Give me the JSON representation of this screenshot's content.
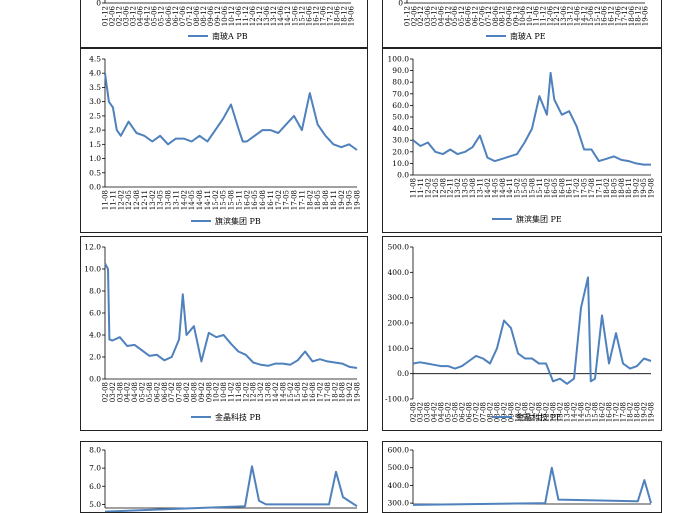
{
  "panels": [
    {
      "id": "p0",
      "legend": "南玻A PB",
      "xticks": [
        "01-12",
        "02-06",
        "02-12",
        "03-06",
        "03-12",
        "04-06",
        "04-12",
        "05-06",
        "05-12",
        "06-06",
        "06-12",
        "07-06",
        "07-12",
        "08-06",
        "08-12",
        "09-06",
        "09-12",
        "10-06",
        "10-12",
        "11-06",
        "11-12",
        "12-06",
        "12-12",
        "13-06",
        "13-12",
        "14-06",
        "14-12",
        "15-06",
        "15-12",
        "16-06",
        "16-12",
        "17-06",
        "17-12",
        "18-06",
        "18-12",
        "19-06"
      ],
      "yticks": [
        "0"
      ],
      "ylim": [
        0,
        1
      ],
      "series": []
    },
    {
      "id": "p1",
      "legend": "南玻A PE",
      "xticks": [
        "01-12",
        "02-06",
        "02-12",
        "03-06",
        "03-12",
        "04-06",
        "04-12",
        "05-06",
        "05-12",
        "06-06",
        "06-12",
        "07-06",
        "07-12",
        "08-06",
        "08-12",
        "09-06",
        "09-12",
        "10-06",
        "10-12",
        "11-06",
        "11-12",
        "12-06",
        "12-12",
        "13-06",
        "13-12",
        "14-06",
        "14-12",
        "15-06",
        "15-12",
        "16-06",
        "16-12",
        "17-06",
        "17-12",
        "18-06",
        "18-12",
        "19-06"
      ],
      "yticks": [
        "0"
      ],
      "ylim": [
        0,
        1
      ],
      "series": []
    },
    {
      "id": "p2",
      "legend": "旗滨集团 PB",
      "xticks": [
        "11-08",
        "11-11",
        "12-02",
        "12-05",
        "12-08",
        "12-11",
        "13-02",
        "13-05",
        "13-08",
        "13-11",
        "14-02",
        "14-05",
        "14-08",
        "14-11",
        "15-02",
        "15-05",
        "15-08",
        "15-11",
        "16-02",
        "16-05",
        "16-08",
        "16-11",
        "17-02",
        "17-05",
        "17-08",
        "17-11",
        "18-02",
        "18-05",
        "18-08",
        "18-11",
        "19-02",
        "19-05",
        "19-08"
      ],
      "yticks": [
        "0.0",
        "0.5",
        "1.0",
        "1.5",
        "2.0",
        "2.5",
        "3.0",
        "3.5",
        "4.0",
        "4.5"
      ],
      "ylim": [
        0,
        4.5
      ],
      "series": [
        [
          0,
          4.0
        ],
        [
          0.5,
          3.0
        ],
        [
          1,
          2.8
        ],
        [
          1.5,
          2.0
        ],
        [
          2,
          1.8
        ],
        [
          3,
          2.3
        ],
        [
          4,
          1.9
        ],
        [
          5,
          1.8
        ],
        [
          6,
          1.6
        ],
        [
          7,
          1.8
        ],
        [
          8,
          1.5
        ],
        [
          9,
          1.7
        ],
        [
          10,
          1.7
        ],
        [
          11,
          1.6
        ],
        [
          12,
          1.8
        ],
        [
          13,
          1.6
        ],
        [
          14,
          2.0
        ],
        [
          15,
          2.4
        ],
        [
          16,
          2.9
        ],
        [
          17,
          2.0
        ],
        [
          17.5,
          1.6
        ],
        [
          18,
          1.6
        ],
        [
          19,
          1.8
        ],
        [
          20,
          2.0
        ],
        [
          21,
          2.0
        ],
        [
          22,
          1.9
        ],
        [
          23,
          2.2
        ],
        [
          24,
          2.5
        ],
        [
          25,
          2.0
        ],
        [
          26,
          3.3
        ],
        [
          27,
          2.2
        ],
        [
          28,
          1.8
        ],
        [
          29,
          1.5
        ],
        [
          30,
          1.4
        ],
        [
          31,
          1.5
        ],
        [
          32,
          1.3
        ]
      ]
    },
    {
      "id": "p3",
      "legend": "旗滨集团 PE",
      "xticks": [
        "11-08",
        "11-11",
        "12-02",
        "12-05",
        "12-08",
        "12-11",
        "13-02",
        "13-05",
        "13-08",
        "13-11",
        "14-02",
        "14-05",
        "14-08",
        "14-11",
        "15-02",
        "15-05",
        "15-08",
        "15-11",
        "16-02",
        "16-05",
        "16-08",
        "16-11",
        "17-02",
        "17-05",
        "17-08",
        "17-11",
        "18-02",
        "18-05",
        "18-08",
        "18-11",
        "19-02",
        "19-05",
        "19-08"
      ],
      "yticks": [
        "0.0",
        "10.0",
        "20.0",
        "30.0",
        "40.0",
        "50.0",
        "60.0",
        "70.0",
        "80.0",
        "90.0",
        "100.0"
      ],
      "ylim": [
        0,
        100
      ],
      "series": [
        [
          0,
          30
        ],
        [
          1,
          25
        ],
        [
          2,
          28
        ],
        [
          3,
          20
        ],
        [
          4,
          18
        ],
        [
          5,
          22
        ],
        [
          6,
          18
        ],
        [
          7,
          20
        ],
        [
          8,
          24
        ],
        [
          9,
          34
        ],
        [
          10,
          15
        ],
        [
          11,
          12
        ],
        [
          12,
          14
        ],
        [
          13,
          16
        ],
        [
          14,
          18
        ],
        [
          15,
          28
        ],
        [
          16,
          40
        ],
        [
          17,
          68
        ],
        [
          18,
          52
        ],
        [
          18.5,
          88
        ],
        [
          19,
          65
        ],
        [
          20,
          52
        ],
        [
          21,
          55
        ],
        [
          22,
          42
        ],
        [
          23,
          22
        ],
        [
          24,
          22
        ],
        [
          25,
          12
        ],
        [
          26,
          14
        ],
        [
          27,
          16
        ],
        [
          28,
          13
        ],
        [
          29,
          12
        ],
        [
          30,
          10
        ],
        [
          31,
          9
        ],
        [
          32,
          9
        ]
      ]
    },
    {
      "id": "p4",
      "legend": "金晶科技 PB",
      "xticks": [
        "02-08",
        "03-02",
        "03-08",
        "04-02",
        "04-08",
        "05-02",
        "05-08",
        "06-02",
        "06-08",
        "07-02",
        "07-08",
        "08-02",
        "08-08",
        "09-02",
        "09-08",
        "10-02",
        "10-08",
        "11-02",
        "11-08",
        "12-02",
        "12-08",
        "13-02",
        "13-08",
        "14-02",
        "14-08",
        "15-02",
        "15-08",
        "16-02",
        "16-08",
        "17-02",
        "17-08",
        "18-02",
        "18-08",
        "19-02",
        "19-08"
      ],
      "yticks": [
        "0.0",
        "2.0",
        "4.0",
        "6.0",
        "8.0",
        "10.0",
        "12.0"
      ],
      "ylim": [
        0,
        12
      ],
      "series": [
        [
          0,
          10.5
        ],
        [
          0.4,
          10.0
        ],
        [
          0.6,
          3.6
        ],
        [
          1,
          3.5
        ],
        [
          2,
          3.8
        ],
        [
          3,
          3.0
        ],
        [
          4,
          3.1
        ],
        [
          5,
          2.6
        ],
        [
          6,
          2.1
        ],
        [
          7,
          2.2
        ],
        [
          8,
          1.7
        ],
        [
          9,
          2.0
        ],
        [
          10,
          3.6
        ],
        [
          10.5,
          7.7
        ],
        [
          11,
          4.0
        ],
        [
          12,
          4.8
        ],
        [
          13,
          1.6
        ],
        [
          14,
          4.2
        ],
        [
          15,
          3.8
        ],
        [
          16,
          4.0
        ],
        [
          17,
          3.2
        ],
        [
          18,
          2.5
        ],
        [
          19,
          2.2
        ],
        [
          20,
          1.5
        ],
        [
          21,
          1.3
        ],
        [
          22,
          1.2
        ],
        [
          23,
          1.4
        ],
        [
          24,
          1.4
        ],
        [
          25,
          1.3
        ],
        [
          26,
          1.7
        ],
        [
          27,
          2.5
        ],
        [
          28,
          1.6
        ],
        [
          29,
          1.8
        ],
        [
          30,
          1.6
        ],
        [
          31,
          1.5
        ],
        [
          32,
          1.4
        ],
        [
          33,
          1.1
        ],
        [
          34,
          1.0
        ]
      ]
    },
    {
      "id": "p5",
      "legend": "金晶科技 PE",
      "xticks": [
        "02-08",
        "03-02",
        "03-08",
        "04-02",
        "04-08",
        "05-02",
        "05-08",
        "06-02",
        "06-08",
        "07-02",
        "07-08",
        "08-02",
        "08-08",
        "09-02",
        "09-08",
        "10-02",
        "10-08",
        "11-02",
        "11-08",
        "12-02",
        "12-08",
        "13-02",
        "13-08",
        "14-02",
        "14-08",
        "15-02",
        "15-08",
        "16-02",
        "16-08",
        "17-02",
        "17-08",
        "18-02",
        "18-08",
        "19-02",
        "19-08"
      ],
      "yticks": [
        "-100.0",
        "0.0",
        "100.0",
        "200.0",
        "300.0",
        "400.0",
        "500.0"
      ],
      "ylim": [
        -100,
        500
      ],
      "series": [
        [
          0,
          40
        ],
        [
          1,
          45
        ],
        [
          2,
          40
        ],
        [
          3,
          35
        ],
        [
          4,
          30
        ],
        [
          5,
          30
        ],
        [
          6,
          20
        ],
        [
          7,
          30
        ],
        [
          8,
          50
        ],
        [
          9,
          70
        ],
        [
          10,
          60
        ],
        [
          11,
          40
        ],
        [
          12,
          100
        ],
        [
          13,
          210
        ],
        [
          14,
          180
        ],
        [
          15,
          80
        ],
        [
          16,
          60
        ],
        [
          17,
          60
        ],
        [
          18,
          40
        ],
        [
          19,
          40
        ],
        [
          20,
          -30
        ],
        [
          21,
          -20
        ],
        [
          22,
          -40
        ],
        [
          23,
          -20
        ],
        [
          24,
          260
        ],
        [
          25,
          380
        ],
        [
          25.4,
          -30
        ],
        [
          26,
          -20
        ],
        [
          27,
          230
        ],
        [
          28,
          40
        ],
        [
          29,
          160
        ],
        [
          30,
          40
        ],
        [
          31,
          20
        ],
        [
          32,
          30
        ],
        [
          33,
          60
        ],
        [
          34,
          50
        ]
      ]
    },
    {
      "id": "p6",
      "legend": "",
      "xticks": [],
      "yticks": [
        "5.0",
        "6.0",
        "7.0",
        "8.0"
      ],
      "ylim": [
        4.8,
        8.0
      ],
      "series": [
        [
          0,
          4.6
        ],
        [
          10,
          4.9
        ],
        [
          10.5,
          7.1
        ],
        [
          11,
          5.2
        ],
        [
          11.5,
          5.0
        ],
        [
          16,
          5.0
        ],
        [
          16.5,
          6.8
        ],
        [
          17,
          5.4
        ],
        [
          18,
          4.9
        ]
      ]
    },
    {
      "id": "p7",
      "legend": "",
      "xticks": [],
      "yticks": [
        "300.0",
        "400.0",
        "500.0",
        "600.0"
      ],
      "ylim": [
        295,
        600
      ],
      "series": [
        [
          0,
          290
        ],
        [
          10,
          300
        ],
        [
          10.5,
          500
        ],
        [
          11,
          320
        ],
        [
          17,
          310
        ],
        [
          17.5,
          430
        ],
        [
          18,
          300
        ]
      ]
    }
  ],
  "colors": {
    "line": "#4f81bd",
    "axis": "#000000"
  },
  "chart_data": [
    {
      "type": "line",
      "legend": "南玻A PB"
    },
    {
      "type": "line",
      "legend": "南玻A PE"
    },
    {
      "type": "line",
      "legend": "旗滨集团 PB",
      "ylim": [
        0,
        4.5
      ]
    },
    {
      "type": "line",
      "legend": "旗滨集团 PE",
      "ylim": [
        0,
        100
      ]
    },
    {
      "type": "line",
      "legend": "金晶科技 PB",
      "ylim": [
        0,
        12
      ]
    },
    {
      "type": "line",
      "legend": "金晶科技 PE",
      "ylim": [
        -100,
        500
      ]
    }
  ]
}
